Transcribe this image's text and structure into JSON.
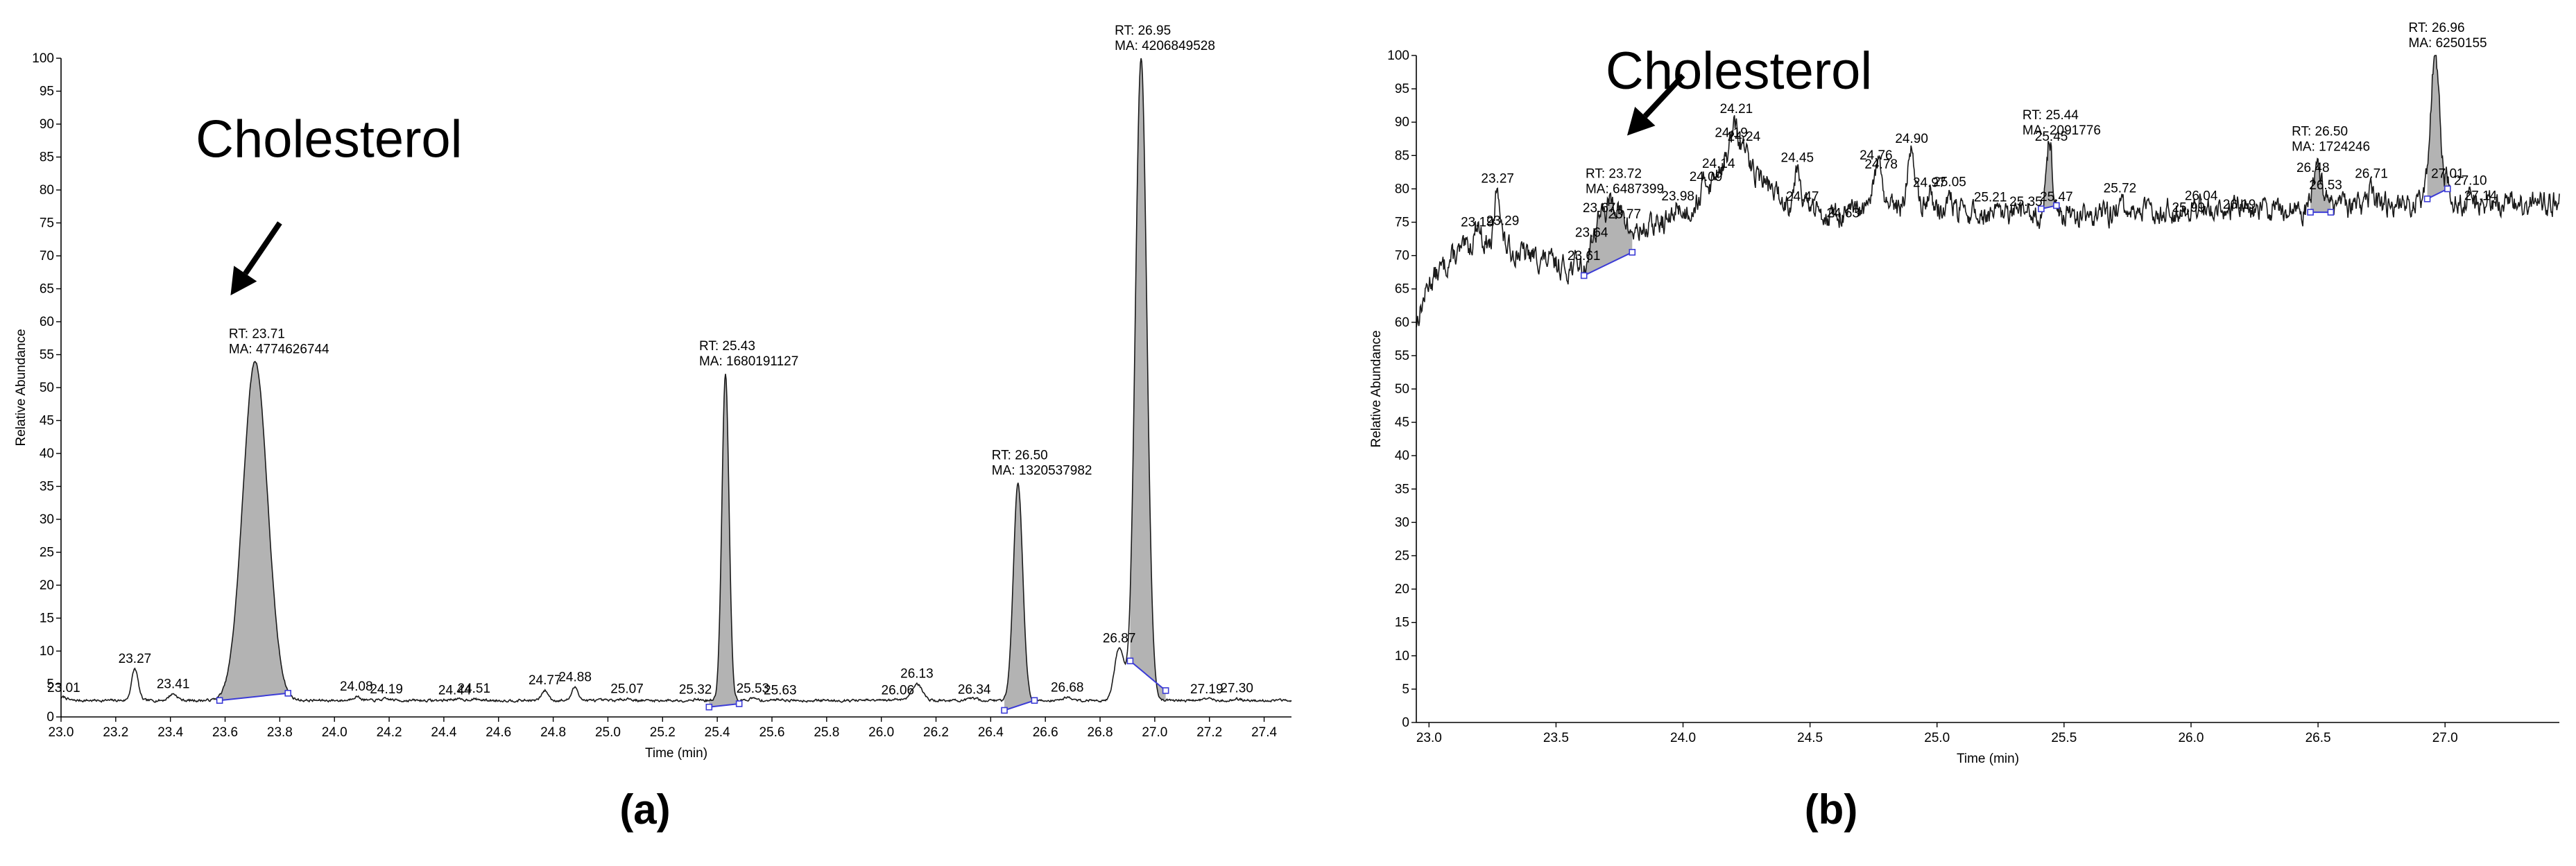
{
  "colors": {
    "trace": "#1a1a1a",
    "peak_fill": "#b3b3b3",
    "baseline": "#3b3bd6",
    "marker": "#3b3bd6",
    "label_underline": "#4caf50",
    "axis": "#000000"
  },
  "chart_data": [
    {
      "type": "line",
      "panel_label": "(a)",
      "xlabel": "Time (min)",
      "ylabel": "Relative Abundance",
      "xlim": [
        23.0,
        27.5
      ],
      "ylim": [
        0,
        100
      ],
      "x_ticks": [
        23.0,
        23.2,
        23.4,
        23.6,
        23.8,
        24.0,
        24.2,
        24.4,
        24.6,
        24.8,
        25.0,
        25.2,
        25.4,
        25.6,
        25.8,
        26.0,
        26.2,
        26.4,
        26.6,
        26.8,
        27.0,
        27.2,
        27.4
      ],
      "x_tick_labels": [
        "23.0",
        "23.2",
        "23.4",
        "23.6",
        "23.8",
        "24.0",
        "24.2",
        "24.4",
        "24.6",
        "24.8",
        "25.0",
        "25.2",
        "25.4",
        "25.6",
        "25.8",
        "26.0",
        "26.2",
        "26.4",
        "26.6",
        "26.8",
        "27.0",
        "27.2",
        "27.4"
      ],
      "y_ticks": [
        0,
        5,
        10,
        15,
        20,
        25,
        30,
        35,
        40,
        45,
        50,
        55,
        60,
        65,
        70,
        75,
        80,
        85,
        90,
        95,
        100
      ],
      "y_tick_labels": [
        "0",
        "5",
        "10",
        "15",
        "20",
        "25",
        "30",
        "35",
        "40",
        "45",
        "50",
        "55",
        "60",
        "65",
        "70",
        "75",
        "80",
        "85",
        "90",
        "95",
        "100"
      ],
      "baseline_level": 2.5,
      "noise_amplitude": 0.35,
      "annotation": {
        "text": "Cholesterol",
        "x": 23.98,
        "y": 85,
        "arrow_from": [
          23.8,
          75
        ],
        "arrow_to": [
          23.62,
          64
        ]
      },
      "peaks": [
        {
          "rt": 23.01,
          "height": 0.5,
          "width": 0.012,
          "label": "23.01"
        },
        {
          "rt": 23.27,
          "height": 4.8,
          "width": 0.012,
          "label": "23.27"
        },
        {
          "rt": 23.41,
          "height": 1.0,
          "width": 0.015,
          "label": "23.41"
        },
        {
          "rt": 23.71,
          "height": 51.5,
          "width": 0.045,
          "label": "",
          "integrated": true,
          "start": 23.58,
          "end": 23.83,
          "start_y": 2.5,
          "end_y": 3.6,
          "rt_text": "RT: 23.71",
          "ma_text": "MA: 4774626744"
        },
        {
          "rt": 24.08,
          "height": 0.6,
          "width": 0.015,
          "label": "24.08"
        },
        {
          "rt": 24.19,
          "height": 0.2,
          "width": 0.02,
          "label": "24.19"
        },
        {
          "rt": 24.44,
          "height": 0.2,
          "width": 0.02,
          "label": "24.44"
        },
        {
          "rt": 24.51,
          "height": 0.2,
          "width": 0.02,
          "label": "24.51"
        },
        {
          "rt": 24.77,
          "height": 1.5,
          "width": 0.012,
          "label": "24.77"
        },
        {
          "rt": 24.88,
          "height": 2.0,
          "width": 0.012,
          "label": "24.88"
        },
        {
          "rt": 25.07,
          "height": 0.3,
          "width": 0.015,
          "label": "25.07"
        },
        {
          "rt": 25.32,
          "height": 0.2,
          "width": 0.015,
          "label": "25.32"
        },
        {
          "rt": 25.43,
          "height": 49.5,
          "width": 0.013,
          "label": "",
          "integrated": true,
          "start": 25.37,
          "end": 25.48,
          "start_y": 1.5,
          "end_y": 2.0,
          "rt_text": "RT: 25.43",
          "ma_text": "MA: 1680191127"
        },
        {
          "rt": 25.53,
          "height": 0.3,
          "width": 0.015,
          "label": "25.53"
        },
        {
          "rt": 25.63,
          "height": 0.2,
          "width": 0.015,
          "label": "25.63"
        },
        {
          "rt": 26.06,
          "height": 0.2,
          "width": 0.015,
          "label": "26.06"
        },
        {
          "rt": 26.13,
          "height": 2.5,
          "width": 0.02,
          "label": "26.13"
        },
        {
          "rt": 26.34,
          "height": 0.3,
          "width": 0.015,
          "label": "26.34"
        },
        {
          "rt": 26.5,
          "height": 33.0,
          "width": 0.017,
          "label": "",
          "integrated": true,
          "start": 26.45,
          "end": 26.56,
          "start_y": 1.0,
          "end_y": 2.5,
          "rt_text": "RT: 26.50",
          "ma_text": "MA: 1320537982"
        },
        {
          "rt": 26.68,
          "height": 0.5,
          "width": 0.015,
          "label": "26.68"
        },
        {
          "rt": 26.87,
          "height": 8.0,
          "width": 0.017,
          "label": "26.87"
        },
        {
          "rt": 26.95,
          "height": 97.5,
          "width": 0.021,
          "label": "",
          "integrated": true,
          "start": 26.91,
          "end": 27.04,
          "start_y": 8.5,
          "end_y": 4.0,
          "rt_text": "RT: 26.95",
          "ma_text": "MA: 4206849528"
        },
        {
          "rt": 27.19,
          "height": 0.3,
          "width": 0.015,
          "label": "27.19"
        },
        {
          "rt": 27.3,
          "height": 0.2,
          "width": 0.015,
          "label": "27.30"
        }
      ]
    },
    {
      "type": "line",
      "panel_label": "(b)",
      "xlabel": "Time (min)",
      "ylabel": "Relative Abundance",
      "xlim": [
        22.95,
        27.45
      ],
      "ylim": [
        0,
        100
      ],
      "x_ticks": [
        23.0,
        23.5,
        24.0,
        24.5,
        25.0,
        25.5,
        26.0,
        26.5,
        27.0
      ],
      "x_tick_labels": [
        "23.0",
        "23.5",
        "24.0",
        "24.5",
        "25.0",
        "25.5",
        "26.0",
        "26.5",
        "27.0"
      ],
      "y_ticks": [
        0,
        5,
        10,
        15,
        20,
        25,
        30,
        35,
        40,
        45,
        50,
        55,
        60,
        65,
        70,
        75,
        80,
        85,
        90,
        95,
        100
      ],
      "y_tick_labels": [
        "0",
        "5",
        "10",
        "15",
        "20",
        "25",
        "30",
        "35",
        "40",
        "45",
        "50",
        "55",
        "60",
        "65",
        "70",
        "75",
        "80",
        "85",
        "90",
        "95",
        "100"
      ],
      "baseline_level": 76,
      "noise_amplitude": 3.2,
      "annotation": {
        "text": "Cholesterol",
        "x": 24.22,
        "y": 95,
        "arrow_from": [
          24.0,
          97
        ],
        "arrow_to": [
          23.78,
          88
        ]
      },
      "baseline_profile": [
        [
          22.95,
          60
        ],
        [
          23.0,
          66
        ],
        [
          23.1,
          70
        ],
        [
          23.2,
          72
        ],
        [
          23.4,
          70
        ],
        [
          23.55,
          68
        ],
        [
          23.7,
          72
        ],
        [
          23.85,
          74
        ],
        [
          24.0,
          76
        ],
        [
          24.1,
          80
        ],
        [
          24.2,
          86
        ],
        [
          24.3,
          82
        ],
        [
          24.4,
          78
        ],
        [
          24.6,
          76
        ],
        [
          24.8,
          77
        ],
        [
          25.0,
          77
        ],
        [
          25.2,
          76
        ],
        [
          25.5,
          76
        ],
        [
          26.0,
          77
        ],
        [
          26.5,
          77
        ],
        [
          27.0,
          78
        ],
        [
          27.45,
          78
        ]
      ],
      "peaks": [
        {
          "rt": 23.19,
          "height": 3,
          "width": 0.012,
          "label": "23.19"
        },
        {
          "rt": 23.27,
          "height": 9,
          "width": 0.01,
          "label": "23.27"
        },
        {
          "rt": 23.29,
          "height": 1,
          "width": 0.01,
          "label": "23.29"
        },
        {
          "rt": 23.61,
          "height": -2,
          "width": 0.01,
          "label": "23.61"
        },
        {
          "rt": 23.64,
          "height": 2,
          "width": 0.01,
          "label": "23.64"
        },
        {
          "rt": 23.67,
          "height": 4,
          "width": 0.01,
          "label": "23.67"
        },
        {
          "rt": 23.72,
          "height": 6,
          "width": 0.03,
          "label": "",
          "integrated": true,
          "start": 23.61,
          "end": 23.8,
          "start_y": 67,
          "end_y": 70.5,
          "rt_text": "RT: 23.72",
          "ma_text": "MA: 6487399"
        },
        {
          "rt": 23.77,
          "height": 1,
          "width": 0.01,
          "label": "23.77"
        },
        {
          "rt": 23.98,
          "height": 2,
          "width": 0.01,
          "label": "23.98"
        },
        {
          "rt": 24.09,
          "height": 2,
          "width": 0.01,
          "label": "24.09"
        },
        {
          "rt": 24.14,
          "height": 1,
          "width": 0.01,
          "label": "24.14"
        },
        {
          "rt": 24.19,
          "height": 2,
          "width": 0.01,
          "label": "24.19"
        },
        {
          "rt": 24.21,
          "height": 3,
          "width": 0.01,
          "label": "24.21"
        },
        {
          "rt": 24.24,
          "height": 2,
          "width": 0.01,
          "label": "24.24"
        },
        {
          "rt": 24.45,
          "height": 6,
          "width": 0.012,
          "label": "24.45"
        },
        {
          "rt": 24.47,
          "height": 1,
          "width": 0.01,
          "label": "24.47"
        },
        {
          "rt": 24.63,
          "height": 0,
          "width": 0.01,
          "label": "24.63"
        },
        {
          "rt": 24.76,
          "height": 6,
          "width": 0.012,
          "label": "24.76"
        },
        {
          "rt": 24.78,
          "height": 4,
          "width": 0.01,
          "label": "24.78"
        },
        {
          "rt": 24.9,
          "height": 9,
          "width": 0.015,
          "label": "24.90"
        },
        {
          "rt": 24.97,
          "height": 3,
          "width": 0.01,
          "label": "24.97"
        },
        {
          "rt": 25.05,
          "height": 2,
          "width": 0.01,
          "label": "25.05"
        },
        {
          "rt": 25.21,
          "height": 0,
          "width": 0.01,
          "label": "25.21"
        },
        {
          "rt": 25.35,
          "height": 1,
          "width": 0.01,
          "label": "25.35"
        },
        {
          "rt": 25.44,
          "height": 10,
          "width": 0.012,
          "label": "",
          "integrated": true,
          "start": 25.41,
          "end": 25.47,
          "start_y": 77,
          "end_y": 77.5,
          "rt_text": "RT: 25.44",
          "ma_text": "MA: 2091776"
        },
        {
          "rt": 25.45,
          "height": 2,
          "width": 0.008,
          "label": "25.45"
        },
        {
          "rt": 25.47,
          "height": 1,
          "width": 0.01,
          "label": "25.47"
        },
        {
          "rt": 25.72,
          "height": 1,
          "width": 0.01,
          "label": "25.72"
        },
        {
          "rt": 25.99,
          "height": 0,
          "width": 0.01,
          "label": "25.99"
        },
        {
          "rt": 26.04,
          "height": 1,
          "width": 0.01,
          "label": "26.04"
        },
        {
          "rt": 26.19,
          "height": 1,
          "width": 0.01,
          "label": "26.19"
        },
        {
          "rt": 26.48,
          "height": 2,
          "width": 0.01,
          "label": "26.48"
        },
        {
          "rt": 26.5,
          "height": 5,
          "width": 0.015,
          "label": "",
          "integrated": true,
          "start": 26.47,
          "end": 26.55,
          "start_y": 76.5,
          "end_y": 76.5,
          "rt_text": "RT: 26.50",
          "ma_text": "MA: 1724246"
        },
        {
          "rt": 26.53,
          "height": 2,
          "width": 0.01,
          "label": "26.53"
        },
        {
          "rt": 26.71,
          "height": 2,
          "width": 0.01,
          "label": "26.71"
        },
        {
          "rt": 26.96,
          "height": 22,
          "width": 0.018,
          "label": "",
          "integrated": true,
          "start": 26.93,
          "end": 27.01,
          "start_y": 78.5,
          "end_y": 80,
          "rt_text": "RT: 26.96",
          "ma_text": "MA: 6250155"
        },
        {
          "rt": 27.01,
          "height": 3,
          "width": 0.01,
          "label": "27.01"
        },
        {
          "rt": 27.1,
          "height": 1,
          "width": 0.01,
          "label": "27.10"
        },
        {
          "rt": 27.14,
          "height": 0,
          "width": 0.01,
          "label": "27.14"
        }
      ]
    }
  ]
}
